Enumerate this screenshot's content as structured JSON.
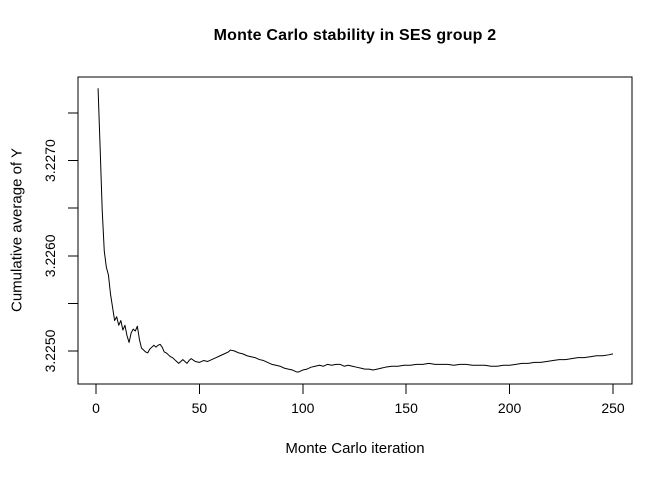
{
  "window": {
    "background": "#ffffff",
    "foreground": "#000000"
  },
  "chart_data": {
    "type": "line",
    "title": "Monte Carlo stability in SES group 2",
    "xlabel": "Monte Carlo iteration",
    "ylabel": "Cumulative average of Y",
    "xlim": [
      0,
      250
    ],
    "ylim": [
      3.225,
      3.2275
    ],
    "grid": false,
    "legend": "none",
    "line_color": "#000000",
    "x_ticks": [
      {
        "value": 0,
        "label": "0"
      },
      {
        "value": 50,
        "label": "50"
      },
      {
        "value": 100,
        "label": "100"
      },
      {
        "value": 150,
        "label": "150"
      },
      {
        "value": 200,
        "label": "200"
      },
      {
        "value": 250,
        "label": "250"
      }
    ],
    "y_ticks": [
      {
        "value": 3.225,
        "label": "3.2250"
      },
      {
        "value": 3.2255,
        "label": ""
      },
      {
        "value": 3.226,
        "label": "3.2260"
      },
      {
        "value": 3.2265,
        "label": ""
      },
      {
        "value": 3.227,
        "label": "3.2270"
      },
      {
        "value": 3.2275,
        "label": ""
      }
    ],
    "series": [
      {
        "name": "Cumulative average of Y",
        "x": [
          1,
          2,
          3,
          4,
          5,
          6,
          7,
          8,
          9,
          10,
          11,
          12,
          13,
          14,
          15,
          16,
          17,
          18,
          19,
          20,
          21,
          22,
          23,
          24,
          25,
          26,
          27,
          28,
          29,
          30,
          31,
          32,
          33,
          34,
          35,
          36,
          37,
          38,
          39,
          40,
          41,
          42,
          43,
          44,
          45,
          46,
          48,
          50,
          52,
          54,
          56,
          58,
          60,
          62,
          64,
          65,
          67,
          69,
          71,
          73,
          75,
          77,
          79,
          81,
          83,
          85,
          87,
          89,
          91,
          93,
          95,
          97,
          98,
          100,
          102,
          104,
          106,
          108,
          110,
          112,
          114,
          116,
          118,
          120,
          122,
          124,
          126,
          128,
          130,
          132,
          134,
          136,
          138,
          140,
          143,
          146,
          149,
          152,
          155,
          158,
          161,
          164,
          167,
          170,
          173,
          176,
          179,
          182,
          185,
          188,
          191,
          194,
          197,
          200,
          203,
          206,
          209,
          212,
          215,
          218,
          221,
          224,
          227,
          230,
          233,
          236,
          239,
          242,
          245,
          248,
          250
        ],
        "y": [
          3.22776,
          3.22713,
          3.22648,
          3.22605,
          3.22588,
          3.2258,
          3.2256,
          3.22546,
          3.22532,
          3.22536,
          3.22527,
          3.22532,
          3.22522,
          3.22527,
          3.22516,
          3.22509,
          3.22519,
          3.22523,
          3.22521,
          3.22526,
          3.22512,
          3.22503,
          3.22501,
          3.22499,
          3.22498,
          3.22502,
          3.22504,
          3.22506,
          3.22504,
          3.22506,
          3.22507,
          3.22504,
          3.22499,
          3.22498,
          3.22496,
          3.22494,
          3.22493,
          3.22491,
          3.22489,
          3.22487,
          3.22489,
          3.22491,
          3.22489,
          3.22487,
          3.2249,
          3.22492,
          3.22489,
          3.22488,
          3.2249,
          3.22489,
          3.22491,
          3.22493,
          3.22495,
          3.22497,
          3.22499,
          3.22501,
          3.225,
          3.22498,
          3.22497,
          3.22495,
          3.22494,
          3.22493,
          3.22491,
          3.2249,
          3.22488,
          3.22486,
          3.22485,
          3.22484,
          3.22482,
          3.22481,
          3.2248,
          3.22478,
          3.22478,
          3.2248,
          3.22481,
          3.22483,
          3.22484,
          3.22485,
          3.22484,
          3.22486,
          3.22485,
          3.22486,
          3.22486,
          3.22484,
          3.22485,
          3.22484,
          3.22483,
          3.22482,
          3.22481,
          3.22481,
          3.2248,
          3.22481,
          3.22482,
          3.22483,
          3.22484,
          3.22484,
          3.22485,
          3.22485,
          3.22486,
          3.22486,
          3.22487,
          3.22486,
          3.22486,
          3.22486,
          3.22485,
          3.22486,
          3.22486,
          3.22485,
          3.22485,
          3.22485,
          3.22484,
          3.22484,
          3.22485,
          3.22485,
          3.22486,
          3.22487,
          3.22487,
          3.22488,
          3.22488,
          3.22489,
          3.2249,
          3.22491,
          3.22491,
          3.22492,
          3.22493,
          3.22493,
          3.22494,
          3.22495,
          3.22495,
          3.22496,
          3.22497
        ]
      }
    ]
  }
}
